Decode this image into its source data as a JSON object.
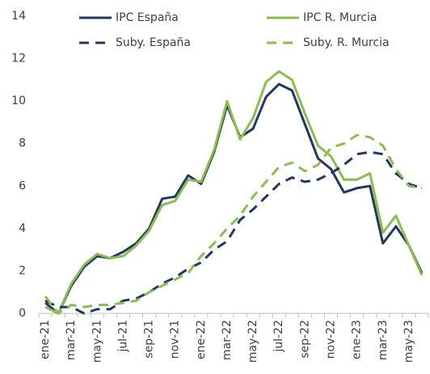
{
  "chart_data": {
    "type": "line",
    "categories": [
      "ene-21",
      null,
      "mar-21",
      null,
      "may-21",
      null,
      "jul-21",
      null,
      "sep-21",
      null,
      "nov-21",
      null,
      "ene-22",
      null,
      "mar-22",
      null,
      "may-22",
      null,
      "jul-22",
      null,
      "sep-22",
      null,
      "nov-22",
      null,
      "ene-23",
      null,
      "mar-23",
      null,
      "may-23",
      null
    ],
    "series": [
      {
        "name": "IPC España",
        "color": "#1f3864",
        "dashed": false,
        "values": [
          0.5,
          0.0,
          1.3,
          2.2,
          2.7,
          2.6,
          2.9,
          3.3,
          4.0,
          5.4,
          5.5,
          6.5,
          6.1,
          7.6,
          9.8,
          8.3,
          8.7,
          10.2,
          10.8,
          10.5,
          8.9,
          7.3,
          6.8,
          5.7,
          5.9,
          6.0,
          3.3,
          4.1,
          3.2,
          1.9
        ]
      },
      {
        "name": "IPC R. Murcia",
        "color": "#8cbd4f",
        "dashed": false,
        "values": [
          0.3,
          0.0,
          1.4,
          2.3,
          2.8,
          2.6,
          2.7,
          3.2,
          3.9,
          5.1,
          5.3,
          6.3,
          6.2,
          7.7,
          10.0,
          8.2,
          9.2,
          10.9,
          11.4,
          11.0,
          9.4,
          7.9,
          7.4,
          6.3,
          6.3,
          6.6,
          3.8,
          4.6,
          3.2,
          1.8
        ]
      },
      {
        "name": "Suby. España",
        "color": "#1f3864",
        "dashed": true,
        "values": [
          0.6,
          0.3,
          0.3,
          0.0,
          0.2,
          0.2,
          0.6,
          0.7,
          1.0,
          1.4,
          1.7,
          2.1,
          2.4,
          3.0,
          3.4,
          4.4,
          4.9,
          5.5,
          6.1,
          6.4,
          6.2,
          6.3,
          6.6,
          7.0,
          7.5,
          7.6,
          7.5,
          6.6,
          6.1,
          5.9
        ]
      },
      {
        "name": "Suby. R. Murcia",
        "color": "#8cbd4f",
        "dashed": true,
        "values": [
          0.8,
          0.0,
          0.4,
          0.3,
          0.4,
          0.4,
          0.5,
          0.6,
          1.0,
          1.3,
          1.6,
          1.9,
          2.7,
          3.3,
          4.0,
          4.6,
          5.5,
          6.2,
          6.9,
          7.1,
          6.7,
          7.0,
          7.8,
          8.0,
          8.4,
          8.3,
          7.9,
          6.8,
          6.0,
          5.9
        ]
      }
    ],
    "ylim": [
      0,
      14
    ],
    "yticks": [
      0,
      2,
      4,
      6,
      8,
      10,
      12,
      14
    ]
  }
}
